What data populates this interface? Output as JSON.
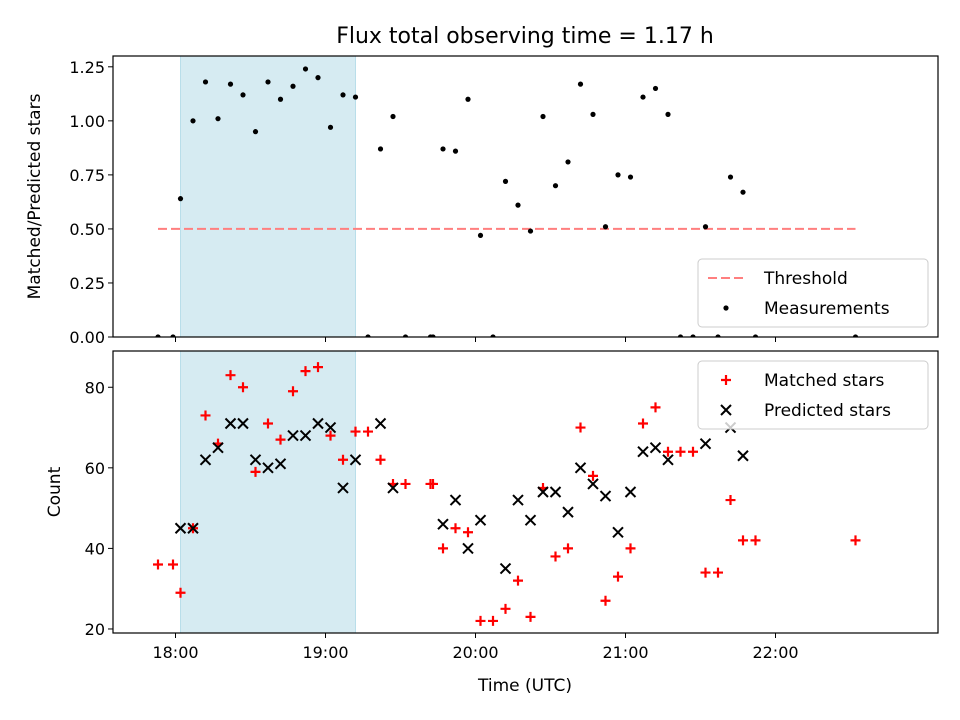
{
  "title": "Flux total observing time = 1.17 h",
  "xlabel": "Time (UTC)",
  "colors": {
    "threshold": "#ff7f7f",
    "shade": "#add8e6",
    "matched": "#ff0000",
    "predicted": "#000000",
    "measurement": "#000000"
  },
  "chart_data": [
    {
      "type": "scatter",
      "ylabel": "Matched/Predicted stars",
      "ylim": [
        0,
        1.3
      ],
      "xlim": [
        "17:35",
        "23:05"
      ],
      "yticks": [
        "0.00",
        "0.25",
        "0.50",
        "0.75",
        "1.00",
        "1.25"
      ],
      "shaded_interval": [
        "18:02",
        "19:12"
      ],
      "legend_position": "lower right",
      "legend": [
        "Threshold",
        "Measurements"
      ],
      "threshold": {
        "name": "Threshold",
        "y": 0.5,
        "x_start": "17:53",
        "x_end": "22:32"
      },
      "series": [
        {
          "name": "Measurements",
          "points": [
            [
              "17:53",
              0
            ],
            [
              "17:59",
              0
            ],
            [
              "18:02",
              0.64
            ],
            [
              "18:07",
              1.0
            ],
            [
              "18:12",
              1.18
            ],
            [
              "18:17",
              1.01
            ],
            [
              "18:22",
              1.17
            ],
            [
              "18:27",
              1.12
            ],
            [
              "18:32",
              0.95
            ],
            [
              "18:37",
              1.18
            ],
            [
              "18:42",
              1.1
            ],
            [
              "18:47",
              1.16
            ],
            [
              "18:52",
              1.24
            ],
            [
              "18:57",
              1.2
            ],
            [
              "19:02",
              0.97
            ],
            [
              "19:07",
              1.12
            ],
            [
              "19:12",
              1.11
            ],
            [
              "19:17",
              0
            ],
            [
              "19:22",
              0.87
            ],
            [
              "19:27",
              1.02
            ],
            [
              "19:32",
              0
            ],
            [
              "19:42",
              0
            ],
            [
              "19:43",
              0
            ],
            [
              "19:47",
              0.87
            ],
            [
              "19:52",
              0.86
            ],
            [
              "19:57",
              1.1
            ],
            [
              "20:02",
              0.47
            ],
            [
              "20:07",
              0
            ],
            [
              "20:12",
              0.72
            ],
            [
              "20:17",
              0.61
            ],
            [
              "20:22",
              0.49
            ],
            [
              "20:27",
              1.02
            ],
            [
              "20:32",
              0.7
            ],
            [
              "20:37",
              0.81
            ],
            [
              "20:42",
              1.17
            ],
            [
              "20:47",
              1.03
            ],
            [
              "20:52",
              0.51
            ],
            [
              "20:57",
              0.75
            ],
            [
              "21:02",
              0.74
            ],
            [
              "21:07",
              1.11
            ],
            [
              "21:12",
              1.15
            ],
            [
              "21:17",
              1.03
            ],
            [
              "21:22",
              0
            ],
            [
              "21:27",
              0
            ],
            [
              "21:32",
              0.51
            ],
            [
              "21:37",
              0
            ],
            [
              "21:42",
              0.74
            ],
            [
              "21:47",
              0.67
            ],
            [
              "21:52",
              0
            ],
            [
              "22:32",
              0
            ]
          ]
        }
      ]
    },
    {
      "type": "scatter",
      "ylabel": "Count",
      "ylim": [
        19,
        89
      ],
      "xlim": [
        "17:35",
        "23:05"
      ],
      "yticks": [
        "20",
        "40",
        "60",
        "80"
      ],
      "xticks": [
        "18:00",
        "19:00",
        "20:00",
        "21:00",
        "22:00"
      ],
      "shaded_interval": [
        "18:02",
        "19:12"
      ],
      "legend_position": "upper right",
      "legend": [
        "Matched stars",
        "Predicted stars"
      ],
      "series": [
        {
          "name": "Matched stars",
          "marker": "plus",
          "points": [
            [
              "17:53",
              36
            ],
            [
              "17:59",
              36
            ],
            [
              "18:02",
              29
            ],
            [
              "18:07",
              45
            ],
            [
              "18:12",
              73
            ],
            [
              "18:17",
              66
            ],
            [
              "18:22",
              83
            ],
            [
              "18:27",
              80
            ],
            [
              "18:32",
              59
            ],
            [
              "18:37",
              71
            ],
            [
              "18:42",
              67
            ],
            [
              "18:47",
              79
            ],
            [
              "18:52",
              84
            ],
            [
              "18:57",
              85
            ],
            [
              "19:02",
              68
            ],
            [
              "19:07",
              62
            ],
            [
              "19:12",
              69
            ],
            [
              "19:17",
              69
            ],
            [
              "19:22",
              62
            ],
            [
              "19:27",
              56
            ],
            [
              "19:32",
              56
            ],
            [
              "19:42",
              56
            ],
            [
              "19:43",
              56
            ],
            [
              "19:47",
              40
            ],
            [
              "19:52",
              45
            ],
            [
              "19:57",
              44
            ],
            [
              "20:02",
              22
            ],
            [
              "20:07",
              22
            ],
            [
              "20:12",
              25
            ],
            [
              "20:17",
              32
            ],
            [
              "20:22",
              23
            ],
            [
              "20:27",
              55
            ],
            [
              "20:32",
              38
            ],
            [
              "20:37",
              40
            ],
            [
              "20:42",
              70
            ],
            [
              "20:47",
              58
            ],
            [
              "20:52",
              27
            ],
            [
              "20:57",
              33
            ],
            [
              "21:02",
              40
            ],
            [
              "21:07",
              71
            ],
            [
              "21:12",
              75
            ],
            [
              "21:17",
              64
            ],
            [
              "21:22",
              64
            ],
            [
              "21:27",
              64
            ],
            [
              "21:32",
              34
            ],
            [
              "21:37",
              34
            ],
            [
              "21:42",
              52
            ],
            [
              "21:47",
              42
            ],
            [
              "21:52",
              42
            ],
            [
              "22:32",
              42
            ]
          ]
        },
        {
          "name": "Predicted stars",
          "marker": "x",
          "points": [
            [
              "18:02",
              45
            ],
            [
              "18:07",
              45
            ],
            [
              "18:12",
              62
            ],
            [
              "18:17",
              65
            ],
            [
              "18:22",
              71
            ],
            [
              "18:27",
              71
            ],
            [
              "18:32",
              62
            ],
            [
              "18:37",
              60
            ],
            [
              "18:42",
              61
            ],
            [
              "18:47",
              68
            ],
            [
              "18:52",
              68
            ],
            [
              "18:57",
              71
            ],
            [
              "19:02",
              70
            ],
            [
              "19:07",
              55
            ],
            [
              "19:12",
              62
            ],
            [
              "19:22",
              71
            ],
            [
              "19:27",
              55
            ],
            [
              "19:47",
              46
            ],
            [
              "19:52",
              52
            ],
            [
              "19:57",
              40
            ],
            [
              "20:02",
              47
            ],
            [
              "20:12",
              35
            ],
            [
              "20:17",
              52
            ],
            [
              "20:22",
              47
            ],
            [
              "20:27",
              54
            ],
            [
              "20:32",
              54
            ],
            [
              "20:37",
              49
            ],
            [
              "20:42",
              60
            ],
            [
              "20:47",
              56
            ],
            [
              "20:52",
              53
            ],
            [
              "20:57",
              44
            ],
            [
              "21:02",
              54
            ],
            [
              "21:07",
              64
            ],
            [
              "21:12",
              65
            ],
            [
              "21:17",
              62
            ],
            [
              "21:32",
              66
            ],
            [
              "21:42",
              70
            ],
            [
              "21:47",
              63
            ]
          ]
        }
      ]
    }
  ]
}
